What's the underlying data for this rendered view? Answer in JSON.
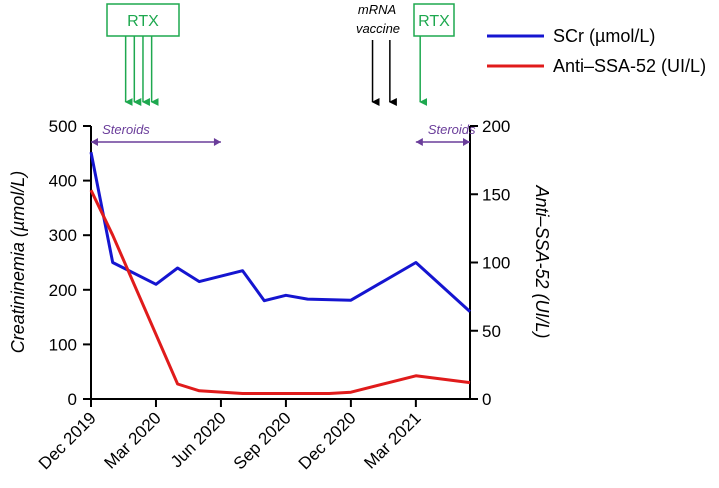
{
  "chart_data": {
    "type": "line",
    "x_unit": "months since Dec 2019",
    "x_range": [
      0,
      17.5
    ],
    "x_ticks": [
      {
        "x": 0,
        "label": "Dec 2019"
      },
      {
        "x": 3,
        "label": "Mar 2020"
      },
      {
        "x": 6,
        "label": "Jun 2020"
      },
      {
        "x": 9,
        "label": "Sep 2020"
      },
      {
        "x": 12,
        "label": "Dec 2020"
      },
      {
        "x": 15,
        "label": "Mar 2021"
      }
    ],
    "y_left": {
      "label": "Creatininemia (µmol/L)",
      "range": [
        0,
        500
      ],
      "ticks": [
        0,
        100,
        200,
        300,
        400,
        500
      ]
    },
    "y_right": {
      "label": "Anti–SSA-52 (UI/L)",
      "range": [
        0,
        200
      ],
      "ticks": [
        0,
        50,
        100,
        150,
        200
      ]
    },
    "series": [
      {
        "name": "SCr (µmol/L)",
        "color": "#1515d0",
        "axis": "left",
        "points": [
          [
            0,
            452
          ],
          [
            1,
            250
          ],
          [
            3,
            210
          ],
          [
            4,
            240
          ],
          [
            5,
            215
          ],
          [
            7,
            235
          ],
          [
            8,
            180
          ],
          [
            9,
            190
          ],
          [
            10,
            183
          ],
          [
            12,
            181
          ],
          [
            15,
            250
          ],
          [
            17.5,
            160
          ]
        ]
      },
      {
        "name": "Anti–SSA-52 (UI/L)",
        "color": "#e01b1b",
        "axis": "right",
        "points": [
          [
            0,
            153
          ],
          [
            1,
            120
          ],
          [
            4,
            11
          ],
          [
            5,
            6
          ],
          [
            7,
            4
          ],
          [
            9,
            4
          ],
          [
            11,
            4
          ],
          [
            12,
            5
          ],
          [
            15,
            17
          ],
          [
            17.5,
            12
          ]
        ]
      }
    ],
    "annotations": {
      "rtx": [
        {
          "label": "RTX",
          "arrow_x": [
            1.6,
            2.0,
            2.4,
            2.8
          ]
        },
        {
          "label": "RTX",
          "arrow_x": [
            15.2
          ]
        }
      ],
      "vaccine": {
        "label_line1": "mRNA",
        "label_line2": "vaccine",
        "arrow_x": [
          13.0,
          13.8
        ]
      },
      "steroids": [
        {
          "label": "Steroids",
          "from_x": 0,
          "to_x": 6
        },
        {
          "label": "Steroids",
          "from_x": 15,
          "to_x": 17.5
        }
      ]
    },
    "legend_position": "top-right"
  }
}
